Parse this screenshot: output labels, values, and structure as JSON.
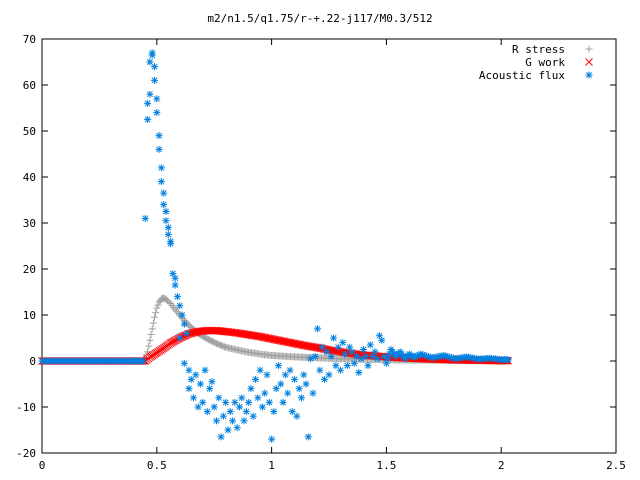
{
  "chart_data": {
    "type": "scatter",
    "title": "m2/n1.5/q1.75/r-+.22-j117/M0.3/512",
    "xlabel": "",
    "ylabel": "",
    "xlim": [
      0,
      2.5
    ],
    "ylim": [
      -20,
      70
    ],
    "x_ticks": [
      0,
      0.5,
      1,
      1.5,
      2,
      2.5
    ],
    "y_ticks": [
      -20,
      -10,
      0,
      10,
      20,
      30,
      40,
      50,
      60,
      70
    ],
    "grid": false,
    "legend_position": "top-right",
    "series": [
      {
        "name": "R stress",
        "marker": "plus",
        "color": "#a0a0a0",
        "points": [
          [
            0,
            0
          ],
          [
            0.1,
            0
          ],
          [
            0.2,
            0
          ],
          [
            0.3,
            0
          ],
          [
            0.4,
            0
          ],
          [
            0.44,
            0
          ],
          [
            0.46,
            2
          ],
          [
            0.47,
            4.5
          ],
          [
            0.48,
            7
          ],
          [
            0.49,
            9.5
          ],
          [
            0.5,
            11.5
          ],
          [
            0.51,
            12.8
          ],
          [
            0.52,
            13.5
          ],
          [
            0.53,
            13.7
          ],
          [
            0.54,
            13.4
          ],
          [
            0.56,
            12.5
          ],
          [
            0.58,
            11.2
          ],
          [
            0.6,
            10
          ],
          [
            0.62,
            8.8
          ],
          [
            0.65,
            7.3
          ],
          [
            0.68,
            6
          ],
          [
            0.72,
            4.8
          ],
          [
            0.76,
            3.8
          ],
          [
            0.8,
            3
          ],
          [
            0.85,
            2.4
          ],
          [
            0.9,
            1.9
          ],
          [
            0.95,
            1.5
          ],
          [
            1.0,
            1.2
          ],
          [
            1.1,
            0.9
          ],
          [
            1.2,
            0.7
          ],
          [
            1.3,
            0.5
          ],
          [
            1.4,
            0.4
          ],
          [
            1.5,
            0.3
          ],
          [
            1.6,
            0.2
          ],
          [
            1.7,
            0.2
          ],
          [
            1.8,
            0.1
          ],
          [
            1.9,
            0.1
          ],
          [
            2.0,
            0.05
          ],
          [
            2.03,
            0.05
          ]
        ]
      },
      {
        "name": "G work",
        "marker": "cross",
        "color": "#ff0000",
        "points": [
          [
            0,
            0
          ],
          [
            0.1,
            0
          ],
          [
            0.2,
            0
          ],
          [
            0.3,
            0
          ],
          [
            0.4,
            0
          ],
          [
            0.45,
            0
          ],
          [
            0.47,
            0.8
          ],
          [
            0.5,
            1.8
          ],
          [
            0.53,
            2.8
          ],
          [
            0.56,
            3.9
          ],
          [
            0.6,
            5
          ],
          [
            0.64,
            5.9
          ],
          [
            0.68,
            6.4
          ],
          [
            0.72,
            6.6
          ],
          [
            0.76,
            6.6
          ],
          [
            0.8,
            6.4
          ],
          [
            0.85,
            6.1
          ],
          [
            0.9,
            5.7
          ],
          [
            0.95,
            5.3
          ],
          [
            1.0,
            4.8
          ],
          [
            1.05,
            4.3
          ],
          [
            1.1,
            3.8
          ],
          [
            1.15,
            3.3
          ],
          [
            1.2,
            2.9
          ],
          [
            1.25,
            2.4
          ],
          [
            1.3,
            2.0
          ],
          [
            1.35,
            1.6
          ],
          [
            1.4,
            1.3
          ],
          [
            1.5,
            0.9
          ],
          [
            1.6,
            0.6
          ],
          [
            1.7,
            0.4
          ],
          [
            1.8,
            0.25
          ],
          [
            1.9,
            0.15
          ],
          [
            2.0,
            0.05
          ],
          [
            2.03,
            0.05
          ]
        ]
      },
      {
        "name": "Acoustic flux",
        "marker": "star",
        "color": "#0080e0",
        "points": [
          [
            0,
            0
          ],
          [
            0.05,
            0
          ],
          [
            0.1,
            0
          ],
          [
            0.15,
            0
          ],
          [
            0.2,
            0
          ],
          [
            0.25,
            0
          ],
          [
            0.3,
            0
          ],
          [
            0.35,
            0
          ],
          [
            0.4,
            0
          ],
          [
            0.44,
            0
          ],
          [
            0.45,
            31
          ],
          [
            0.46,
            56
          ],
          [
            0.46,
            52.5
          ],
          [
            0.47,
            58
          ],
          [
            0.47,
            65
          ],
          [
            0.48,
            67
          ],
          [
            0.48,
            66.5
          ],
          [
            0.49,
            64
          ],
          [
            0.49,
            61
          ],
          [
            0.5,
            57
          ],
          [
            0.5,
            54
          ],
          [
            0.51,
            49
          ],
          [
            0.51,
            46
          ],
          [
            0.52,
            42
          ],
          [
            0.52,
            39
          ],
          [
            0.53,
            36.5
          ],
          [
            0.53,
            34
          ],
          [
            0.54,
            32.5
          ],
          [
            0.54,
            30.5
          ],
          [
            0.55,
            29
          ],
          [
            0.55,
            27.5
          ],
          [
            0.56,
            26
          ],
          [
            0.56,
            25.5
          ],
          [
            0.57,
            19
          ],
          [
            0.58,
            18
          ],
          [
            0.58,
            16.5
          ],
          [
            0.59,
            14
          ],
          [
            0.6,
            12
          ],
          [
            0.61,
            10
          ],
          [
            0.62,
            8
          ],
          [
            0.63,
            6
          ],
          [
            0.6,
            5
          ],
          [
            0.62,
            -0.5
          ],
          [
            0.64,
            -2
          ],
          [
            0.64,
            -6
          ],
          [
            0.65,
            -4
          ],
          [
            0.66,
            -8
          ],
          [
            0.67,
            -3
          ],
          [
            0.68,
            -10
          ],
          [
            0.69,
            -5
          ],
          [
            0.7,
            -9
          ],
          [
            0.71,
            -2
          ],
          [
            0.72,
            -11
          ],
          [
            0.73,
            -6
          ],
          [
            0.74,
            -4.5
          ],
          [
            0.75,
            -10
          ],
          [
            0.76,
            -13
          ],
          [
            0.77,
            -8
          ],
          [
            0.78,
            -16.5
          ],
          [
            0.79,
            -12
          ],
          [
            0.8,
            -9
          ],
          [
            0.81,
            -15
          ],
          [
            0.82,
            -11
          ],
          [
            0.83,
            -13
          ],
          [
            0.84,
            -9
          ],
          [
            0.85,
            -14.5
          ],
          [
            0.86,
            -10
          ],
          [
            0.87,
            -8
          ],
          [
            0.88,
            -13
          ],
          [
            0.89,
            -11
          ],
          [
            0.9,
            -9
          ],
          [
            0.91,
            -6
          ],
          [
            0.92,
            -12
          ],
          [
            0.93,
            -4
          ],
          [
            0.94,
            -8
          ],
          [
            0.95,
            -2
          ],
          [
            0.96,
            -10
          ],
          [
            0.97,
            -7
          ],
          [
            0.98,
            -3
          ],
          [
            0.99,
            -9
          ],
          [
            1.0,
            -17
          ],
          [
            1.01,
            -11
          ],
          [
            1.02,
            -6
          ],
          [
            1.03,
            -1
          ],
          [
            1.04,
            -5
          ],
          [
            1.05,
            -9
          ],
          [
            1.06,
            -3
          ],
          [
            1.07,
            -7
          ],
          [
            1.08,
            -2
          ],
          [
            1.09,
            -11
          ],
          [
            1.1,
            -4
          ],
          [
            1.11,
            -12
          ],
          [
            1.12,
            -6
          ],
          [
            1.13,
            -8
          ],
          [
            1.14,
            -3
          ],
          [
            1.15,
            -5
          ],
          [
            1.16,
            -16.5
          ],
          [
            1.17,
            0.5
          ],
          [
            1.18,
            -7
          ],
          [
            1.19,
            1
          ],
          [
            1.2,
            7
          ],
          [
            1.21,
            -2
          ],
          [
            1.22,
            3
          ],
          [
            1.23,
            -4
          ],
          [
            1.24,
            2
          ],
          [
            1.25,
            -3
          ],
          [
            1.26,
            1
          ],
          [
            1.27,
            5
          ],
          [
            1.28,
            -1
          ],
          [
            1.29,
            3
          ],
          [
            1.3,
            -2
          ],
          [
            1.31,
            4
          ],
          [
            1.32,
            1.5
          ],
          [
            1.33,
            -1
          ],
          [
            1.34,
            3
          ],
          [
            1.35,
            2
          ],
          [
            1.36,
            -0.5
          ],
          [
            1.37,
            1
          ],
          [
            1.38,
            -2.5
          ],
          [
            1.39,
            0.5
          ],
          [
            1.4,
            2.5
          ],
          [
            1.41,
            1
          ],
          [
            1.42,
            -1
          ],
          [
            1.43,
            3.5
          ],
          [
            1.44,
            1
          ],
          [
            1.45,
            2
          ],
          [
            1.46,
            0.5
          ],
          [
            1.47,
            5.5
          ],
          [
            1.48,
            4.5
          ],
          [
            1.49,
            1
          ],
          [
            1.5,
            -0.5
          ],
          [
            1.52,
            2.5
          ],
          [
            1.54,
            1
          ],
          [
            1.56,
            2
          ],
          [
            1.58,
            0.5
          ],
          [
            1.6,
            1.5
          ],
          [
            1.62,
            0.8
          ],
          [
            1.65,
            1.5
          ],
          [
            1.7,
            0.7
          ],
          [
            1.75,
            1.2
          ],
          [
            1.8,
            0.5
          ],
          [
            1.85,
            0.9
          ],
          [
            1.9,
            0.4
          ],
          [
            1.95,
            0.6
          ],
          [
            2.0,
            0.3
          ],
          [
            2.03,
            0.3
          ]
        ]
      }
    ]
  }
}
